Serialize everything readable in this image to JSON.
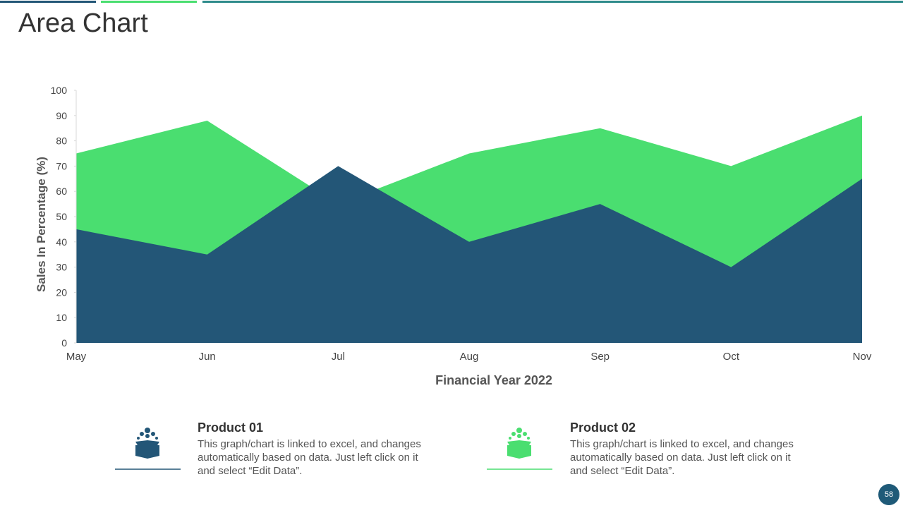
{
  "chart_data": {
    "type": "area",
    "title": "Area Chart",
    "x_label": "Financial Year 2022",
    "y_label": "Sales In Percentage (%)",
    "categories": [
      "May",
      "Jun",
      "Jul",
      "Aug",
      "Sep",
      "Oct",
      "Nov"
    ],
    "series": [
      {
        "name": "Product 02",
        "color": "#4ade70",
        "values": [
          75,
          88,
          55,
          75,
          85,
          70,
          90
        ]
      },
      {
        "name": "Product 01",
        "color": "#235677",
        "values": [
          45,
          35,
          70,
          40,
          55,
          30,
          65
        ]
      }
    ],
    "ylim": [
      0,
      100
    ],
    "yticks": [
      0,
      10,
      20,
      30,
      40,
      50,
      60,
      70,
      80,
      90,
      100
    ],
    "grid": false
  },
  "captions": [
    "This graph/chart is linked to excel, and changes automatically based on data. Just left click on it and select “Edit Data”.",
    "This graph/chart is linked to excel, and changes automatically based on data. Just left click on it and select “Edit Data”."
  ],
  "page_number": 58
}
